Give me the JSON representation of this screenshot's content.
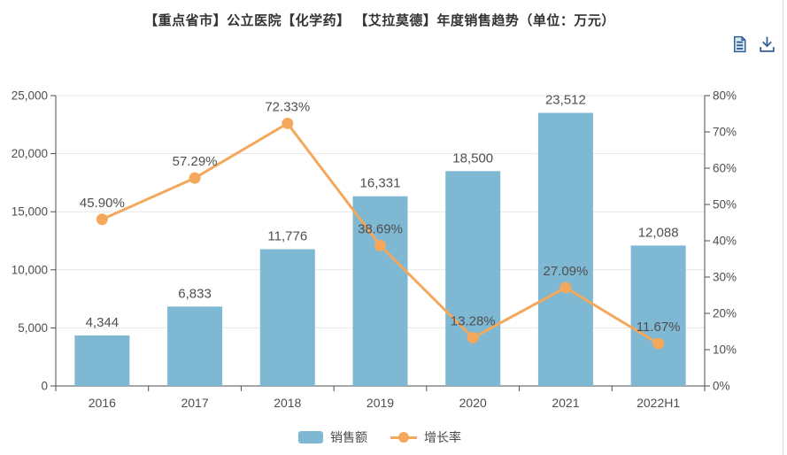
{
  "header": {
    "title": "【重点省市】公立医院【化学药】 【艾拉莫德】年度销售趋势（单位：万元）"
  },
  "toolbar": {
    "icons": [
      {
        "name": "view-data-icon"
      },
      {
        "name": "download-icon"
      }
    ],
    "icon_color": "#2f6097"
  },
  "chart_data": {
    "type": "bar+line",
    "title": "【重点省市】公立医院【化学药】 【艾拉莫德】年度销售趋势（单位：万元）",
    "categories": [
      "2016",
      "2017",
      "2018",
      "2019",
      "2020",
      "2021",
      "2022H1"
    ],
    "series": [
      {
        "name": "销售额",
        "slug": "sales-amount",
        "type": "bar",
        "axis": "left",
        "color": "#7EB8D3",
        "values": [
          4344,
          6833,
          11776,
          16331,
          18500,
          23512,
          12088
        ],
        "labels": [
          "4,344",
          "6,833",
          "11,776",
          "16,331",
          "18,500",
          "23,512",
          "12,088"
        ]
      },
      {
        "name": "增长率",
        "slug": "growth-rate",
        "type": "line",
        "axis": "right",
        "color": "#F3A85C",
        "values": [
          45.9,
          57.29,
          72.33,
          38.69,
          13.28,
          27.09,
          11.67
        ],
        "labels": [
          "45.90%",
          "57.29%",
          "72.33%",
          "38.69%",
          "13.28%",
          "27.09%",
          "11.67%"
        ]
      }
    ],
    "left_axis": {
      "min": 0,
      "max": 25000,
      "step": 5000,
      "tick_labels": [
        "0",
        "5,000",
        "10,000",
        "15,000",
        "20,000",
        "25,000"
      ]
    },
    "right_axis": {
      "min": 0,
      "max": 80,
      "step": 10,
      "tick_labels": [
        "0%",
        "10%",
        "20%",
        "30%",
        "40%",
        "50%",
        "60%",
        "70%",
        "80%"
      ]
    },
    "grid": true,
    "legend": {
      "position": "bottom",
      "items": [
        "销售额",
        "增长率"
      ]
    },
    "style": {
      "grid_color": "#e7e7e7",
      "axis_color": "#4d4d4d",
      "tick_text_color": "#4e4e4e",
      "data_label_color": "#4f4f4f"
    }
  }
}
